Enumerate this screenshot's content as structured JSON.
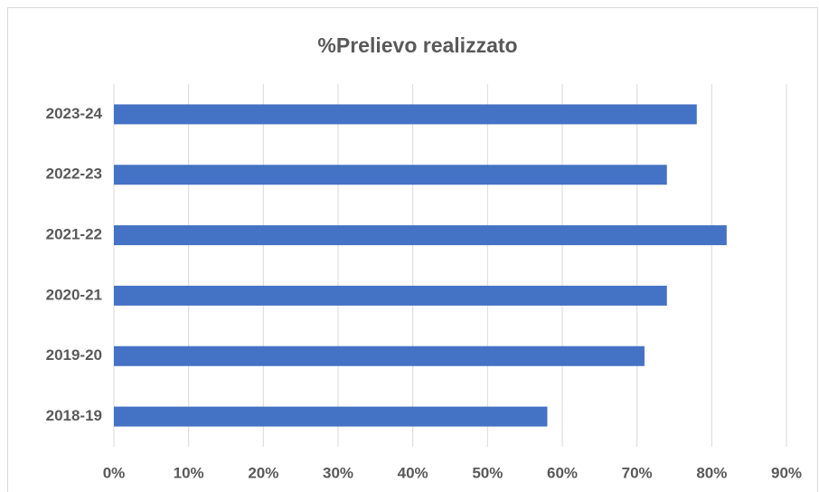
{
  "chart_data": {
    "type": "bar",
    "orientation": "horizontal",
    "title": "%Prelievo realizzato",
    "categories": [
      "2023-24",
      "2022-23",
      "2021-22",
      "2020-21",
      "2019-20",
      "2018-19"
    ],
    "values": [
      78,
      74,
      82,
      74,
      71,
      58
    ],
    "color": "#4472c4",
    "xlim": [
      0,
      90
    ],
    "xticks": [
      {
        "value": 0,
        "label": "0%"
      },
      {
        "value": 10,
        "label": "10%"
      },
      {
        "value": 20,
        "label": "20%"
      },
      {
        "value": 30,
        "label": "30%"
      },
      {
        "value": 40,
        "label": "40%"
      },
      {
        "value": 50,
        "label": "50%"
      },
      {
        "value": 60,
        "label": "60%"
      },
      {
        "value": 70,
        "label": "70%"
      },
      {
        "value": 80,
        "label": "80%"
      },
      {
        "value": 90,
        "label": "90%"
      }
    ],
    "grid": true
  }
}
